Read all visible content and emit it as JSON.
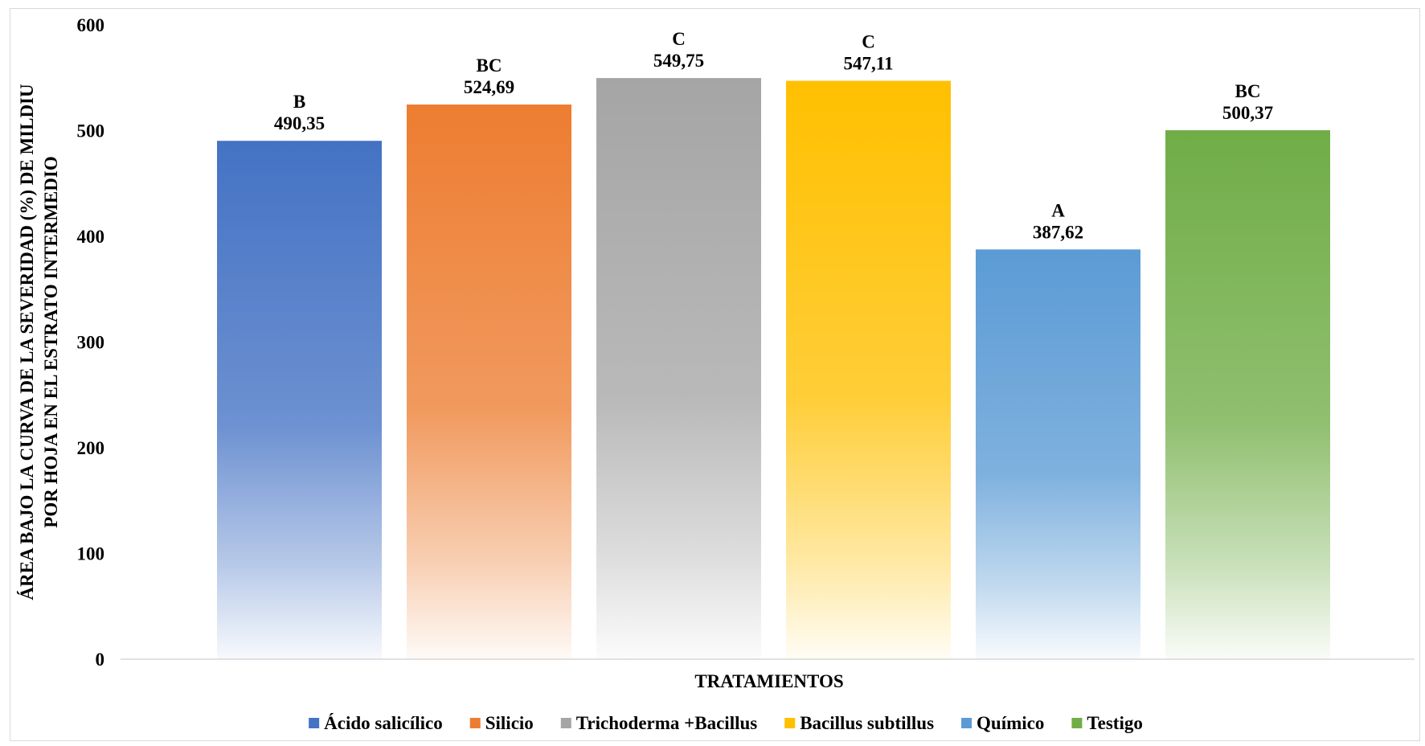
{
  "chart_data": {
    "type": "bar",
    "categories": [
      "Ácido salicílico",
      "Silicio",
      "Trichoderma +Bacillus",
      "Bacillus subtillus",
      "Químico",
      "Testigo"
    ],
    "values": [
      490.35,
      524.69,
      549.75,
      547.11,
      387.62,
      500.37
    ],
    "value_labels": [
      "490,35",
      "524,69",
      "549,75",
      "547,11",
      "387,62",
      "500,37"
    ],
    "group_letters": [
      "B",
      "BC",
      "C",
      "C",
      "A",
      "BC"
    ],
    "colors": [
      "#4472C4",
      "#ED7D31",
      "#A5A5A5",
      "#FFC000",
      "#5B9BD5",
      "#70AD47"
    ],
    "xlabel": "TRATAMIENTOS",
    "ylabel_lines": [
      "ÁREA BAJO LA CURVA DE LA SEVERIDAD (%) DE MILDIU",
      "POR HOJA EN EL ESTRATO INTERMEDIO"
    ],
    "ylim": [
      0,
      600
    ],
    "yticks": [
      0,
      100,
      200,
      300,
      400,
      500,
      600
    ],
    "grid": false,
    "legend": "bottom",
    "fill": "gradient-fade-to-bottom"
  }
}
